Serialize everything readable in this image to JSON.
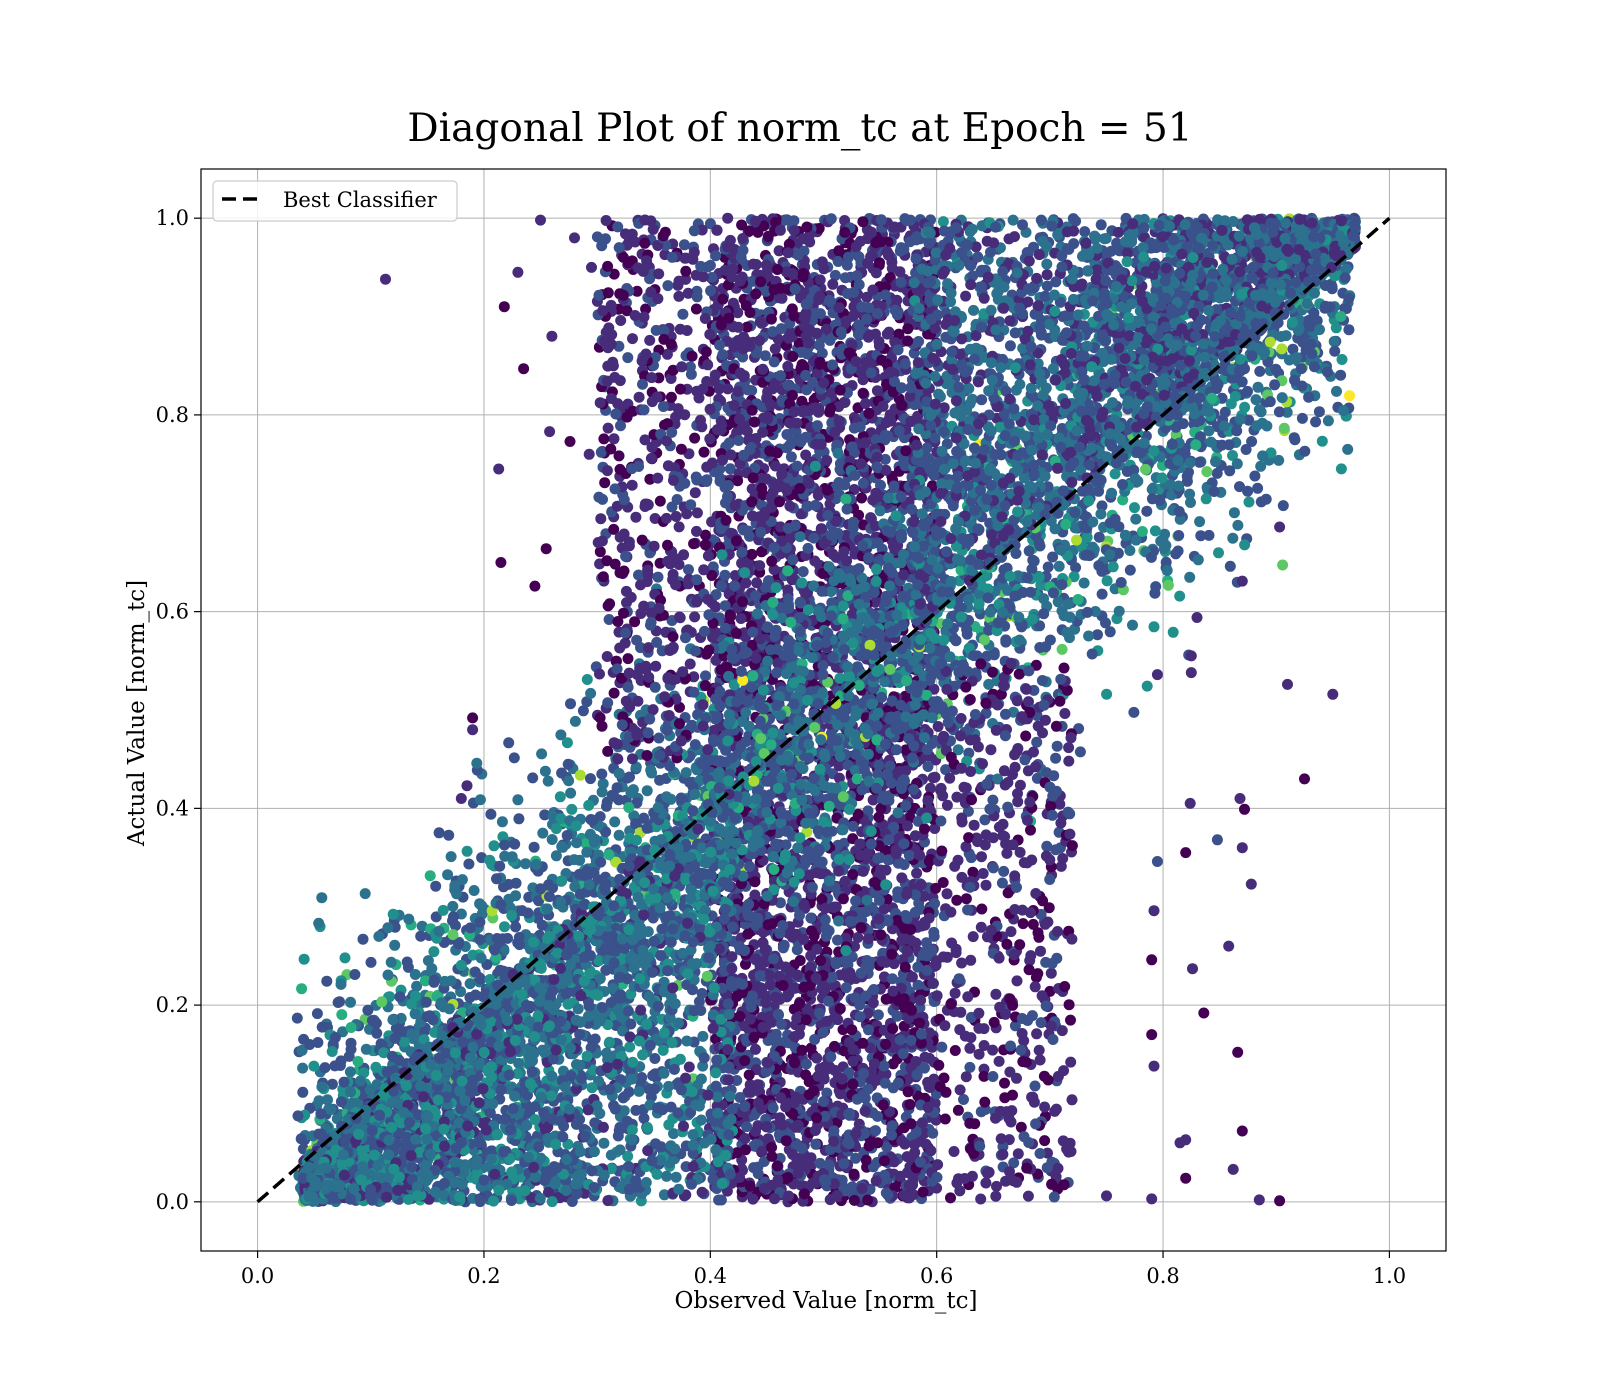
{
  "chart_data": {
    "type": "scatter",
    "title": "Diagonal Plot of norm_tc at Epoch = 51",
    "xlabel": "Observed Value [norm_tc]",
    "ylabel": "Actual Value [norm_tc]",
    "xlim": [
      -0.05,
      1.05
    ],
    "ylim": [
      -0.05,
      1.05
    ],
    "xticks": [
      0.0,
      0.2,
      0.4,
      0.6,
      0.8,
      1.0
    ],
    "xtick_labels": [
      "0.0",
      "0.2",
      "0.4",
      "0.6",
      "0.8",
      "1.0"
    ],
    "yticks": [
      0.0,
      0.2,
      0.4,
      0.6,
      0.8,
      1.0
    ],
    "ytick_labels": [
      "0.0",
      "0.2",
      "0.4",
      "0.6",
      "0.8",
      "1.0"
    ],
    "grid": true,
    "legend": {
      "placement": "upper-left",
      "entries": [
        {
          "label": "Best Classifier",
          "style": "dashed-line",
          "color": "#000000"
        }
      ]
    },
    "reference_line": {
      "name": "Best Classifier",
      "x": [
        0.0,
        1.0
      ],
      "y": [
        0.0,
        1.0
      ],
      "style": "dashed",
      "color": "#000000"
    },
    "colormap": [
      "#440154",
      "#472c7a",
      "#3b518b",
      "#2c718e",
      "#21908d",
      "#27ad81",
      "#5cc863",
      "#aadc32",
      "#fde725"
    ],
    "dense_regions": [
      {
        "description_x": [
          0.4,
          0.6
        ],
        "y": [
          0.0,
          1.0
        ],
        "color_range": [
          0.0,
          0.3
        ]
      },
      {
        "description_x": "near diagonal",
        "y": [
          0.0,
          1.0
        ],
        "color_range": [
          0.2,
          0.7
        ]
      }
    ],
    "outlier_points": [
      {
        "x": 0.113,
        "y": 0.938
      },
      {
        "x": 0.25,
        "y": 0.998
      },
      {
        "x": 0.23,
        "y": 0.945
      },
      {
        "x": 0.218,
        "y": 0.91
      },
      {
        "x": 0.26,
        "y": 0.88
      },
      {
        "x": 0.235,
        "y": 0.847
      },
      {
        "x": 0.213,
        "y": 0.745
      },
      {
        "x": 0.215,
        "y": 0.65
      },
      {
        "x": 0.255,
        "y": 0.664
      },
      {
        "x": 0.245,
        "y": 0.626
      },
      {
        "x": 0.19,
        "y": 0.492
      },
      {
        "x": 0.19,
        "y": 0.48
      },
      {
        "x": 0.185,
        "y": 0.423
      },
      {
        "x": 0.18,
        "y": 0.41
      },
      {
        "x": 0.28,
        "y": 0.98
      },
      {
        "x": 0.295,
        "y": 0.95
      },
      {
        "x": 0.305,
        "y": 0.906
      },
      {
        "x": 0.258,
        "y": 0.783
      },
      {
        "x": 0.276,
        "y": 0.773
      },
      {
        "x": 0.293,
        "y": 0.76
      },
      {
        "x": 0.903,
        "y": 0.686
      },
      {
        "x": 0.87,
        "y": 0.631
      },
      {
        "x": 0.91,
        "y": 0.526
      },
      {
        "x": 0.95,
        "y": 0.516
      },
      {
        "x": 0.925,
        "y": 0.43
      },
      {
        "x": 0.868,
        "y": 0.41
      },
      {
        "x": 0.872,
        "y": 0.399
      },
      {
        "x": 0.848,
        "y": 0.368
      },
      {
        "x": 0.87,
        "y": 0.36
      },
      {
        "x": 0.878,
        "y": 0.323
      },
      {
        "x": 0.858,
        "y": 0.26
      },
      {
        "x": 0.826,
        "y": 0.237
      },
      {
        "x": 0.836,
        "y": 0.192
      },
      {
        "x": 0.866,
        "y": 0.152
      },
      {
        "x": 0.87,
        "y": 0.072
      },
      {
        "x": 0.862,
        "y": 0.033
      },
      {
        "x": 0.885,
        "y": 0.002
      },
      {
        "x": 0.903,
        "y": 0.001
      },
      {
        "x": 0.82,
        "y": 0.024
      },
      {
        "x": 0.815,
        "y": 0.06
      },
      {
        "x": 0.82,
        "y": 0.063
      },
      {
        "x": 0.79,
        "y": 0.003
      },
      {
        "x": 0.75,
        "y": 0.006
      },
      {
        "x": 0.792,
        "y": 0.138
      },
      {
        "x": 0.79,
        "y": 0.17
      },
      {
        "x": 0.79,
        "y": 0.246
      },
      {
        "x": 0.792,
        "y": 0.296
      },
      {
        "x": 0.795,
        "y": 0.346
      },
      {
        "x": 0.82,
        "y": 0.355
      },
      {
        "x": 0.824,
        "y": 0.405
      },
      {
        "x": 0.825,
        "y": 0.555
      },
      {
        "x": 0.825,
        "y": 0.538
      },
      {
        "x": 0.83,
        "y": 0.594
      },
      {
        "x": 0.795,
        "y": 0.536
      }
    ]
  }
}
